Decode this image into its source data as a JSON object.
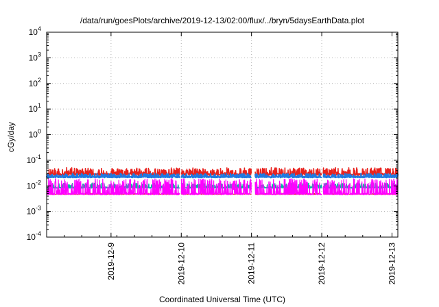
{
  "chart_data": {
    "type": "line",
    "title": "/data/run/goesPlots/archive/2019-12-13/02:00/flux/../bryn/5daysEarthData.plot",
    "xlabel": "Coordinated Universal Time (UTC)",
    "ylabel": "cGy/day",
    "yscale": "log",
    "ylim": [
      0.0001,
      10000
    ],
    "y_ticks": [
      {
        "value": 0.0001,
        "base": "10",
        "exp": "-4"
      },
      {
        "value": 0.001,
        "base": "10",
        "exp": "-3"
      },
      {
        "value": 0.01,
        "base": "10",
        "exp": "-2"
      },
      {
        "value": 0.1,
        "base": "10",
        "exp": "-1"
      },
      {
        "value": 1,
        "base": "10",
        "exp": "0"
      },
      {
        "value": 10,
        "base": "10",
        "exp": "1"
      },
      {
        "value": 100,
        "base": "10",
        "exp": "2"
      },
      {
        "value": 1000,
        "base": "10",
        "exp": "3"
      },
      {
        "value": 10000,
        "base": "10",
        "exp": "4"
      }
    ],
    "xlim": [
      "2019-12-08T02:00",
      "2019-12-13T02:00"
    ],
    "x_ticks": [
      "2019-12-9",
      "2019-12-10",
      "2019-12-11",
      "2019-12-12",
      "2019-12-13"
    ],
    "grid": true,
    "gaps": [
      {
        "from": "2019-12-09T23:30",
        "to": "2019-12-09T23:55"
      },
      {
        "from": "2019-12-11T00:00",
        "to": "2019-12-11T01:10"
      },
      {
        "from": "2019-12-12T00:00",
        "to": "2019-12-12T00:25"
      }
    ],
    "series": [
      {
        "color": "#e8231f",
        "width": 1.6,
        "base": 0.028,
        "spike": 0.022,
        "noise": 0.18,
        "seed": 7
      },
      {
        "color": "#1f7ae0",
        "width": 2.0,
        "base": 0.022,
        "spike": 0.008,
        "noise": 0.1,
        "seed": 11
      },
      {
        "color": "#00b4a0",
        "width": 1.4,
        "base": 0.0085,
        "spike": 0.004,
        "noise": 0.08,
        "seed": 23
      },
      {
        "color": "#e8231f",
        "width": 1.0,
        "base": 0.0047,
        "spike": 0.0005,
        "noise": 0.04,
        "seed": 31
      },
      {
        "color": "#ff00ff",
        "width": 1.2,
        "base": 0.0048,
        "spike": 0.014,
        "noise": 0.15,
        "seed": 5
      }
    ]
  }
}
